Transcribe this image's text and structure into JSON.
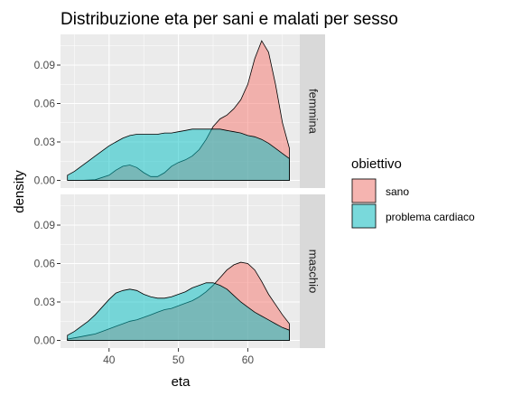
{
  "chart_data": {
    "type": "area",
    "title": "Distribuzione eta per sani e malati per sesso",
    "xlabel": "eta",
    "ylabel": "density",
    "xlim": [
      33,
      67.5
    ],
    "ylim": [
      -0.006,
      0.114
    ],
    "x_ticks": [
      40,
      50,
      60
    ],
    "y_ticks": [
      0,
      0.03,
      0.06,
      0.09
    ],
    "y_tick_labels": [
      "0.00",
      "0.03",
      "0.06",
      "0.09"
    ],
    "grid": true,
    "legend": {
      "title": "obiettivo",
      "placement": "right",
      "entries": [
        "sano",
        "problema cardiaco"
      ]
    },
    "colors": {
      "sano": "#F8766D",
      "problema cardiaco": "#00BFC4",
      "panel_bg": "#EBEBEB",
      "strip_bg": "#D9D9D9"
    },
    "facets": [
      {
        "label": "femmina",
        "series": [
          {
            "name": "sano",
            "x": [
              34,
              36,
              38,
              40,
              41,
              42,
              43,
              44,
              45,
              46,
              47,
              48,
              49,
              50,
              51,
              52,
              53,
              54,
              55,
              56,
              57,
              58,
              59,
              60,
              61,
              62,
              63,
              64,
              65,
              66
            ],
            "y": [
              0.0,
              0.0,
              0.0005,
              0.004,
              0.008,
              0.011,
              0.012,
              0.01,
              0.006,
              0.003,
              0.003,
              0.006,
              0.011,
              0.014,
              0.016,
              0.019,
              0.024,
              0.032,
              0.042,
              0.048,
              0.051,
              0.056,
              0.063,
              0.075,
              0.095,
              0.109,
              0.1,
              0.075,
              0.045,
              0.025
            ]
          },
          {
            "name": "problema cardiaco",
            "x": [
              34,
              35,
              36,
              37,
              38,
              39,
              40,
              41,
              42,
              43,
              44,
              45,
              46,
              47,
              48,
              49,
              50,
              51,
              52,
              53,
              54,
              55,
              56,
              57,
              58,
              59,
              60,
              61,
              62,
              63,
              64,
              65,
              66
            ],
            "y": [
              0.004,
              0.007,
              0.011,
              0.015,
              0.019,
              0.023,
              0.027,
              0.03,
              0.033,
              0.035,
              0.036,
              0.036,
              0.036,
              0.036,
              0.037,
              0.037,
              0.038,
              0.039,
              0.04,
              0.04,
              0.04,
              0.04,
              0.04,
              0.039,
              0.038,
              0.037,
              0.035,
              0.034,
              0.032,
              0.029,
              0.025,
              0.021,
              0.017
            ]
          }
        ]
      },
      {
        "label": "maschio",
        "series": [
          {
            "name": "sano",
            "x": [
              34,
              35,
              36,
              37,
              38,
              39,
              40,
              41,
              42,
              43,
              44,
              45,
              46,
              47,
              48,
              49,
              50,
              51,
              52,
              53,
              54,
              55,
              56,
              57,
              58,
              59,
              60,
              61,
              62,
              63,
              64,
              65,
              66
            ],
            "y": [
              0.001,
              0.002,
              0.003,
              0.004,
              0.005,
              0.007,
              0.009,
              0.011,
              0.013,
              0.015,
              0.016,
              0.018,
              0.02,
              0.022,
              0.024,
              0.025,
              0.027,
              0.029,
              0.031,
              0.034,
              0.038,
              0.043,
              0.049,
              0.055,
              0.059,
              0.061,
              0.06,
              0.055,
              0.046,
              0.036,
              0.028,
              0.02,
              0.013
            ]
          },
          {
            "name": "problema cardiaco",
            "x": [
              34,
              35,
              36,
              37,
              38,
              39,
              40,
              41,
              42,
              43,
              44,
              45,
              46,
              47,
              48,
              49,
              50,
              51,
              52,
              53,
              54,
              55,
              56,
              57,
              58,
              59,
              60,
              61,
              62,
              63,
              64,
              65,
              66
            ],
            "y": [
              0.004,
              0.007,
              0.011,
              0.015,
              0.02,
              0.026,
              0.032,
              0.037,
              0.039,
              0.04,
              0.039,
              0.036,
              0.034,
              0.033,
              0.033,
              0.034,
              0.036,
              0.038,
              0.041,
              0.043,
              0.045,
              0.045,
              0.043,
              0.04,
              0.035,
              0.03,
              0.026,
              0.022,
              0.019,
              0.016,
              0.013,
              0.01,
              0.008
            ]
          }
        ]
      }
    ]
  }
}
